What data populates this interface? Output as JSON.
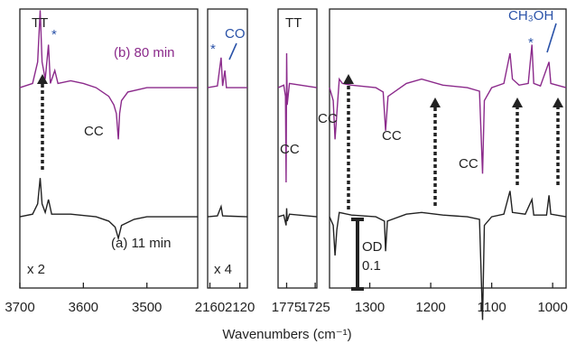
{
  "chart_data": {
    "type": "line",
    "xlabel": "Wavenumbers (cm⁻¹)",
    "panels": [
      {
        "id": "p1",
        "xlim": [
          3700,
          3420
        ],
        "ticks": [
          3700,
          3600,
          3500
        ],
        "tick_labels": [
          "3700",
          "3600",
          "3500"
        ],
        "multiplier": "x 2"
      },
      {
        "id": "p2",
        "xlim": [
          2163,
          2110
        ],
        "ticks": [
          2160,
          2120
        ],
        "tick_labels": [
          "2160",
          "2120"
        ],
        "multiplier": "x 4"
      },
      {
        "id": "p3",
        "xlim": [
          1790,
          1722
        ],
        "ticks": [
          1775,
          1725
        ],
        "tick_labels": [
          "1775",
          "1725"
        ]
      },
      {
        "id": "p4",
        "xlim": [
          1366,
          978
        ],
        "ticks": [
          1300,
          1200,
          1100,
          1000
        ],
        "tick_labels": [
          "1300",
          "1200",
          "1100",
          "1000"
        ]
      }
    ],
    "series": [
      {
        "name": "(b) 80 min",
        "color": "#8b2a8b",
        "baseline_y": 0.12,
        "points": {
          "p1": [
            [
              3700,
              0
            ],
            [
              3680,
              0.005
            ],
            [
              3672,
              0.03
            ],
            [
              3668,
              0.09
            ],
            [
              3665,
              0.03
            ],
            [
              3660,
              0.01
            ],
            [
              3655,
              0.05
            ],
            [
              3652,
              0.005
            ],
            [
              3645,
              0.02
            ],
            [
              3640,
              0.005
            ],
            [
              3620,
              0.008
            ],
            [
              3600,
              0.005
            ],
            [
              3580,
              0
            ],
            [
              3560,
              -0.01
            ],
            [
              3552,
              -0.02
            ],
            [
              3548,
              -0.03
            ],
            [
              3545,
              -0.06
            ],
            [
              3543,
              -0.03
            ],
            [
              3540,
              -0.015
            ],
            [
              3530,
              -0.005
            ],
            [
              3500,
              0
            ],
            [
              3420,
              0
            ]
          ],
          "p2": [
            [
              2163,
              0
            ],
            [
              2150,
              0.002
            ],
            [
              2145,
              0.035
            ],
            [
              2143,
              0.002
            ],
            [
              2140,
              0.02
            ],
            [
              2138,
              0
            ],
            [
              2110,
              0
            ]
          ],
          "p3": [
            [
              1790,
              0
            ],
            [
              1780,
              0.003
            ],
            [
              1777,
              -0.01
            ],
            [
              1776,
              -0.11
            ],
            [
              1775,
              0.04
            ],
            [
              1774,
              -0.02
            ],
            [
              1770,
              0.005
            ],
            [
              1722,
              0
            ]
          ],
          "p4": [
            [
              1366,
              0
            ],
            [
              1360,
              -0.015
            ],
            [
              1357,
              -0.06
            ],
            [
              1354,
              -0.03
            ],
            [
              1350,
              0.01
            ],
            [
              1345,
              0.005
            ],
            [
              1330,
              0.003
            ],
            [
              1290,
              0
            ],
            [
              1278,
              -0.005
            ],
            [
              1274,
              -0.05
            ],
            [
              1270,
              -0.01
            ],
            [
              1240,
              0.005
            ],
            [
              1215,
              0.01
            ],
            [
              1180,
              0.003
            ],
            [
              1140,
              0
            ],
            [
              1120,
              -0.004
            ],
            [
              1115,
              -0.1
            ],
            [
              1112,
              -0.015
            ],
            [
              1100,
              0
            ],
            [
              1080,
              0.005
            ],
            [
              1070,
              0.04
            ],
            [
              1066,
              0.01
            ],
            [
              1055,
              0.003
            ],
            [
              1040,
              0.005
            ],
            [
              1034,
              0.05
            ],
            [
              1031,
              0.005
            ],
            [
              1020,
              0.002
            ],
            [
              1006,
              0.03
            ],
            [
              1003,
              0.005
            ],
            [
              978,
              0
            ]
          ]
        }
      },
      {
        "name": "(a) 11 min",
        "color": "#222222",
        "baseline_y": -0.03,
        "points": {
          "p1": [
            [
              3700,
              0
            ],
            [
              3680,
              0.003
            ],
            [
              3672,
              0.015
            ],
            [
              3668,
              0.045
            ],
            [
              3665,
              0.015
            ],
            [
              3660,
              0.005
            ],
            [
              3655,
              0.02
            ],
            [
              3650,
              0.003
            ],
            [
              3620,
              0.003
            ],
            [
              3580,
              0
            ],
            [
              3560,
              -0.005
            ],
            [
              3550,
              -0.012
            ],
            [
              3545,
              -0.025
            ],
            [
              3540,
              -0.01
            ],
            [
              3520,
              -0.003
            ],
            [
              3500,
              0
            ],
            [
              3420,
              0
            ]
          ],
          "p2": [
            [
              2163,
              0
            ],
            [
              2150,
              0.001
            ],
            [
              2145,
              0.012
            ],
            [
              2143,
              0.001
            ],
            [
              2110,
              0
            ]
          ],
          "p3": [
            [
              1790,
              0
            ],
            [
              1780,
              0.002
            ],
            [
              1776,
              -0.01
            ],
            [
              1775,
              0.01
            ],
            [
              1774,
              -0.005
            ],
            [
              1770,
              0.003
            ],
            [
              1722,
              0
            ]
          ],
          "p4": [
            [
              1366,
              0
            ],
            [
              1360,
              -0.01
            ],
            [
              1357,
              -0.045
            ],
            [
              1354,
              -0.015
            ],
            [
              1350,
              0.005
            ],
            [
              1330,
              0.002
            ],
            [
              1290,
              0
            ],
            [
              1276,
              -0.005
            ],
            [
              1274,
              -0.04
            ],
            [
              1271,
              -0.005
            ],
            [
              1240,
              0.003
            ],
            [
              1215,
              0.005
            ],
            [
              1180,
              0.002
            ],
            [
              1140,
              0
            ],
            [
              1120,
              -0.003
            ],
            [
              1115,
              -0.12
            ],
            [
              1112,
              -0.01
            ],
            [
              1100,
              0
            ],
            [
              1080,
              0.003
            ],
            [
              1070,
              0.03
            ],
            [
              1066,
              0.005
            ],
            [
              1045,
              0.003
            ],
            [
              1034,
              0.02
            ],
            [
              1031,
              0.002
            ],
            [
              1010,
              0.002
            ],
            [
              1006,
              0.025
            ],
            [
              1003,
              0.003
            ],
            [
              978,
              0
            ]
          ]
        }
      }
    ],
    "annotations": {
      "tt_top": "TT",
      "star_top": "*",
      "b_label": "(b) 80 min",
      "cc_p1": "CC",
      "a_label": "(a) 11 min",
      "star_p2": "*",
      "co": "CO",
      "tt_p3": "TT",
      "cc_p3": "CC",
      "cc_p4_1": "CC",
      "cc_p4_2": "CC",
      "cc_p4_3": "CC",
      "methanol": "CH₃OH",
      "star_p4": "*",
      "od": "OD",
      "od_value": "0.1"
    }
  }
}
